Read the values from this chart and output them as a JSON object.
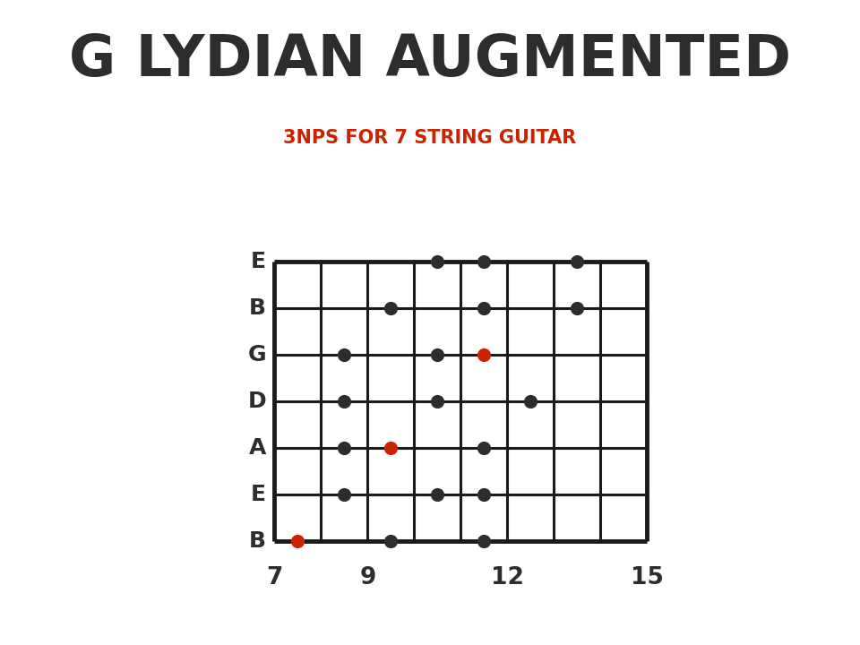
{
  "title": "G LYDIAN AUGMENTED",
  "subtitle": "3NPS FOR 7 STRING GUITAR",
  "title_color": "#2d2d2d",
  "subtitle_color": "#cc2200",
  "background_color": "#ffffff",
  "fret_min": 7,
  "fret_max": 15,
  "strings": [
    "E",
    "B",
    "G",
    "D",
    "A",
    "E",
    "B"
  ],
  "fret_markers": [
    7,
    9,
    12,
    15
  ],
  "notes": [
    {
      "string": 0,
      "fret": 11,
      "color": "#2d2d2d"
    },
    {
      "string": 0,
      "fret": 12,
      "color": "#2d2d2d"
    },
    {
      "string": 0,
      "fret": 14,
      "color": "#2d2d2d"
    },
    {
      "string": 1,
      "fret": 10,
      "color": "#2d2d2d"
    },
    {
      "string": 1,
      "fret": 12,
      "color": "#2d2d2d"
    },
    {
      "string": 1,
      "fret": 14,
      "color": "#2d2d2d"
    },
    {
      "string": 2,
      "fret": 9,
      "color": "#2d2d2d"
    },
    {
      "string": 2,
      "fret": 11,
      "color": "#2d2d2d"
    },
    {
      "string": 2,
      "fret": 12,
      "color": "#cc2200"
    },
    {
      "string": 3,
      "fret": 9,
      "color": "#2d2d2d"
    },
    {
      "string": 3,
      "fret": 11,
      "color": "#2d2d2d"
    },
    {
      "string": 3,
      "fret": 13,
      "color": "#2d2d2d"
    },
    {
      "string": 4,
      "fret": 9,
      "color": "#2d2d2d"
    },
    {
      "string": 4,
      "fret": 10,
      "color": "#cc2200"
    },
    {
      "string": 4,
      "fret": 12,
      "color": "#2d2d2d"
    },
    {
      "string": 5,
      "fret": 9,
      "color": "#2d2d2d"
    },
    {
      "string": 5,
      "fret": 11,
      "color": "#2d2d2d"
    },
    {
      "string": 5,
      "fret": 12,
      "color": "#2d2d2d"
    },
    {
      "string": 6,
      "fret": 8,
      "color": "#cc2200"
    },
    {
      "string": 6,
      "fret": 10,
      "color": "#2d2d2d"
    },
    {
      "string": 6,
      "fret": 12,
      "color": "#2d2d2d"
    }
  ],
  "dot_size": 120,
  "string_linewidth": 2.2,
  "fret_linewidth": 2.2,
  "border_linewidth": 3.5,
  "title_fontsize": 46,
  "subtitle_fontsize": 15,
  "label_fontsize": 18,
  "fret_label_fontsize": 19
}
